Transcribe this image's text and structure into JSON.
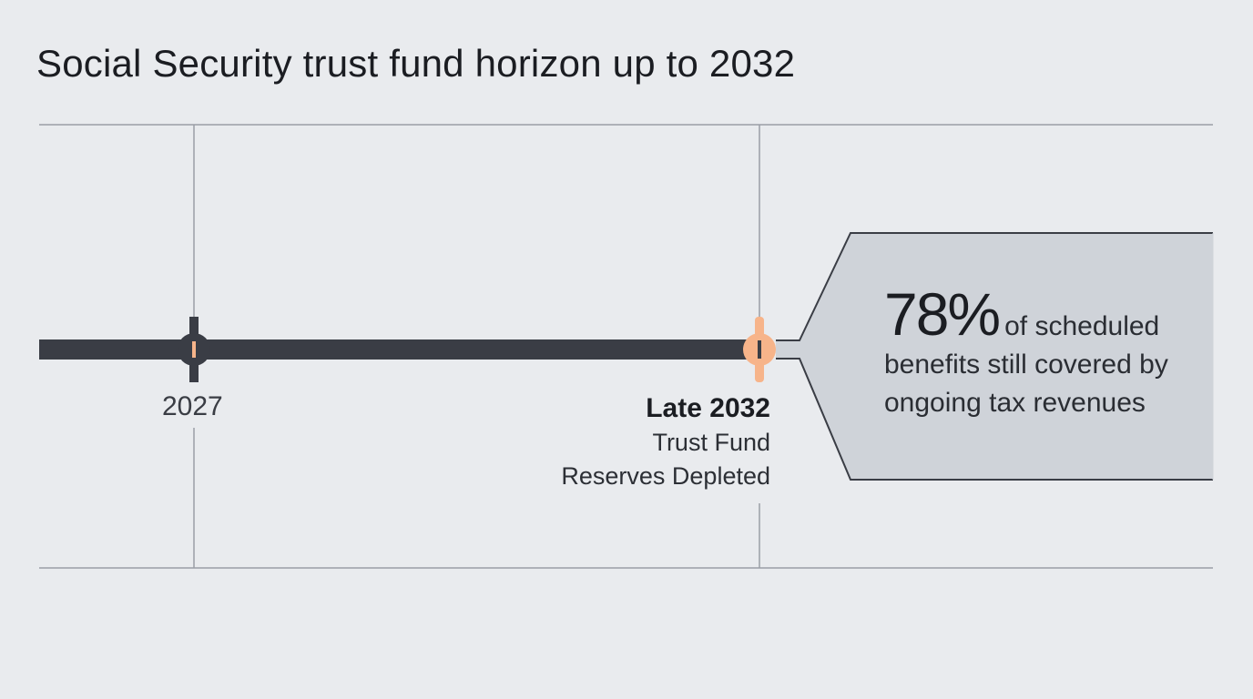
{
  "title": "Social Security trust fund horizon up to 2032",
  "milestones": [
    {
      "label": "2027"
    },
    {
      "label": "Late 2032",
      "description_lines": [
        "Trust Fund",
        "Reserves Depleted"
      ]
    }
  ],
  "callout": {
    "value": "78%",
    "text": "of scheduled benefits still covered by ongoing tax revenues"
  },
  "colors": {
    "background": "#e9ebee",
    "timeline_bar": "#3a3d45",
    "accent": "#f7b48a",
    "callout_fill": "#cfd3d9",
    "grid_line": "#9a9ea6"
  }
}
